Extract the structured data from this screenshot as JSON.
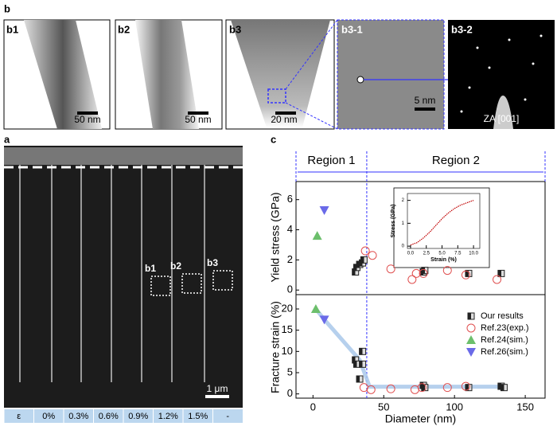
{
  "figure": {
    "panel_labels": [
      "b",
      "a",
      "c"
    ],
    "b_panels": [
      {
        "label": "b1",
        "scale": "50 nm"
      },
      {
        "label": "b2",
        "scale": "50 nm"
      },
      {
        "label": "b3",
        "scale": "20 nm"
      },
      {
        "label": "b3-1",
        "scale": "5 nm"
      },
      {
        "label": "b3-2",
        "scale": "ZA [001]"
      }
    ],
    "a_panel": {
      "markers": [
        "b1",
        "b2",
        "b3"
      ],
      "scale": "1 μm",
      "strain_row": [
        "ε",
        "0%",
        "0.3%",
        "0.6%",
        "0.9%",
        "1.2%",
        "1.5%",
        "-"
      ]
    },
    "regions": [
      "Region 1",
      "Region 2"
    ]
  },
  "chart_data": [
    {
      "type": "scatter",
      "ylabel": "Yield stress (GPa)",
      "xlim": [
        -12,
        164
      ],
      "ylim": [
        -0.2,
        7.2
      ],
      "yticks": [
        0,
        2,
        4,
        6
      ],
      "boundary": 38,
      "series": [
        {
          "color": "#333333",
          "marker": "square",
          "x": [
            30,
            31,
            33,
            35,
            36,
            78,
            79,
            110,
            133
          ],
          "values": [
            1.2,
            1.5,
            1.7,
            1.8,
            2.0,
            1.2,
            1.3,
            1.1,
            1.1
          ]
        },
        {
          "color": "#e05050",
          "marker": "circle",
          "x": [
            37,
            42,
            55,
            70,
            73,
            78,
            95,
            108,
            130
          ],
          "values": [
            2.6,
            2.3,
            1.4,
            0.7,
            1.1,
            1.1,
            1.3,
            1.0,
            0.7
          ]
        },
        {
          "color": "#6cbf6c",
          "marker": "triangle-up",
          "x": [
            3
          ],
          "values": [
            3.6
          ]
        },
        {
          "color": "#6a6ae8",
          "marker": "triangle-down",
          "x": [
            8
          ],
          "values": [
            5.3
          ]
        }
      ]
    },
    {
      "type": "scatter",
      "ylabel": "Fracture strain (%)",
      "xlabel": "Diameter (nm)",
      "xlim": [
        -12,
        164
      ],
      "xticks": [
        0,
        50,
        100,
        150
      ],
      "ylim": [
        -1,
        23
      ],
      "yticks": [
        0,
        5,
        10,
        15,
        20
      ],
      "boundary": 38,
      "trend": {
        "color": "#a9c8ea",
        "x": [
          2,
          8,
          33,
          40,
          135
        ],
        "values": [
          20,
          17.5,
          8,
          1.7,
          1.7
        ]
      },
      "series": [
        {
          "name": "Our results",
          "color": "#333333",
          "marker": "square",
          "x": [
            30,
            31,
            33,
            35,
            35,
            78,
            79,
            110,
            133,
            135
          ],
          "values": [
            8,
            7,
            3.5,
            10,
            7,
            2,
            1.5,
            1.5,
            1.8,
            1.5
          ]
        },
        {
          "name": "Ref.23(exp.)",
          "color": "#e05050",
          "marker": "circle",
          "x": [
            36,
            41,
            55,
            72,
            77,
            95,
            108
          ],
          "values": [
            1.5,
            1,
            1.2,
            1,
            1.5,
            1.5,
            1.8
          ]
        },
        {
          "name": "Ref.24(sim.)",
          "color": "#6cbf6c",
          "marker": "triangle-up",
          "x": [
            2
          ],
          "values": [
            20
          ]
        },
        {
          "name": "Ref.26(sim.)",
          "color": "#6a6ae8",
          "marker": "triangle-down",
          "x": [
            8
          ],
          "values": [
            17.5
          ]
        }
      ]
    },
    {
      "type": "line",
      "xlabel": "Strain (%)",
      "ylabel": "Stress (GPa)",
      "xlim": [
        -0.5,
        11
      ],
      "ylim": [
        -0.1,
        2.3
      ],
      "xticks": [
        {
          "value": 0,
          "label": "0.0"
        },
        {
          "value": 2.5,
          "label": "2.5"
        },
        {
          "value": 5,
          "label": "5.0"
        },
        {
          "value": 7.5,
          "label": "7.5"
        },
        {
          "value": 10,
          "label": "10.0"
        }
      ],
      "yticks": [
        0,
        1,
        2
      ],
      "series": [
        {
          "color": "#c00000",
          "x": [
            0,
            1,
            2,
            3,
            4,
            5,
            6,
            7,
            8,
            9,
            10
          ],
          "values": [
            0.05,
            0.15,
            0.35,
            0.6,
            0.9,
            1.2,
            1.45,
            1.65,
            1.8,
            1.9,
            2.0
          ]
        }
      ]
    }
  ]
}
